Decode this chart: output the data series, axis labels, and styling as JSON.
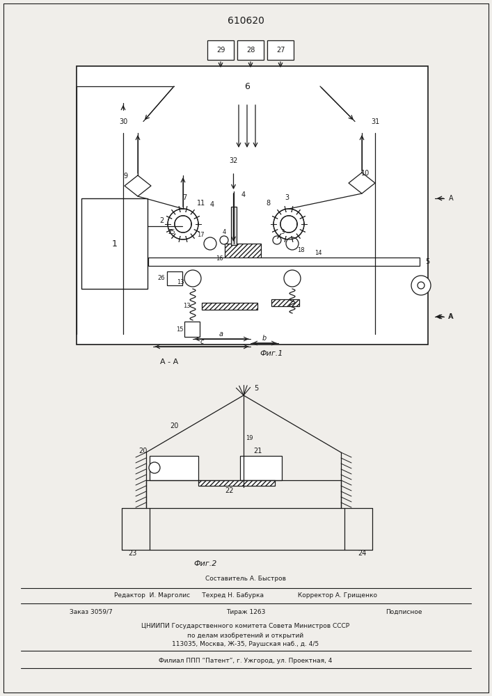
{
  "patent_number": "610620",
  "fig1_caption": "Фиг.1",
  "fig2_caption": "Фиг.2",
  "section_label": "А - А",
  "bg_color": "#f0eeea",
  "line_color": "#1a1a1a"
}
